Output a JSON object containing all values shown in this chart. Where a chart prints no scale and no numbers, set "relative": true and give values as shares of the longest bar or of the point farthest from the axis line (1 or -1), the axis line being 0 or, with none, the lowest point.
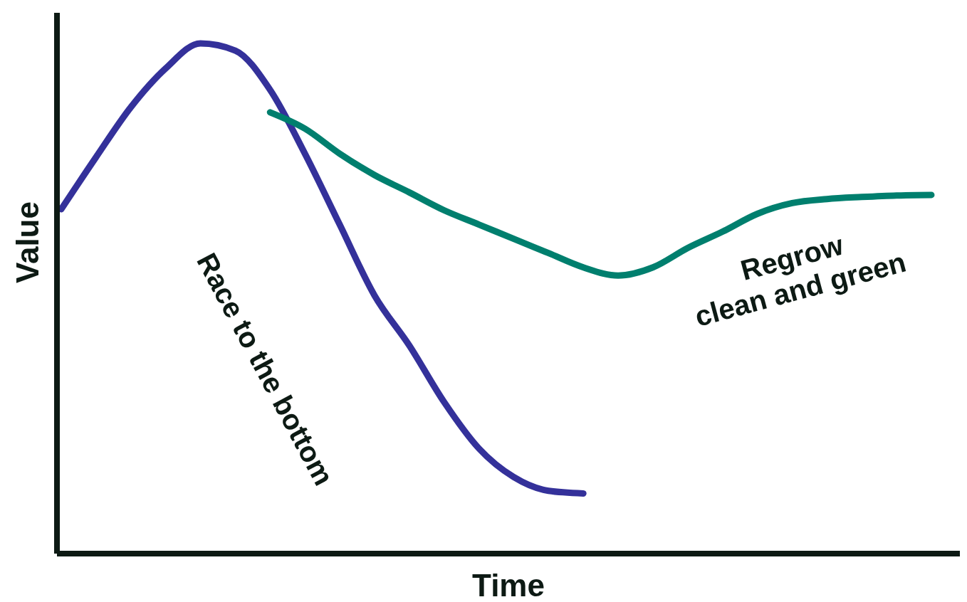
{
  "chart_data": {
    "type": "line",
    "relative": true,
    "xlabel": "Time",
    "ylabel": "Value",
    "categories": [
      null,
      null,
      null,
      null,
      null,
      null,
      null,
      null,
      null,
      null,
      null,
      null,
      null,
      null,
      null,
      null,
      null,
      null,
      null,
      null,
      null,
      null,
      null,
      null,
      null,
      null
    ],
    "series": [
      {
        "color": "#34319a",
        "values": [
          0.675,
          0.777,
          0.875,
          0.951,
          1,
          0.986,
          0.909,
          0.784,
          0.645,
          0.506,
          0.408,
          0.297,
          0.206,
          0.15,
          0.123,
          0.118,
          null,
          null,
          null,
          null,
          null,
          null,
          null,
          null,
          null,
          null
        ]
      },
      {
        "color": "#007f6e",
        "values": [
          null,
          null,
          null,
          null,
          null,
          null,
          0.865,
          0.833,
          0.784,
          0.742,
          0.708,
          0.673,
          0.645,
          0.617,
          0.589,
          0.561,
          0.545,
          0.561,
          0.599,
          0.631,
          0.666,
          0.687,
          0.695,
          0.699,
          0.702,
          0.703
        ]
      }
    ],
    "annotations": [
      "Race to the bottom",
      "Regrow\nclean and green"
    ],
    "grid": false,
    "legend": false,
    "line_style": "solid",
    "marker": "none"
  }
}
